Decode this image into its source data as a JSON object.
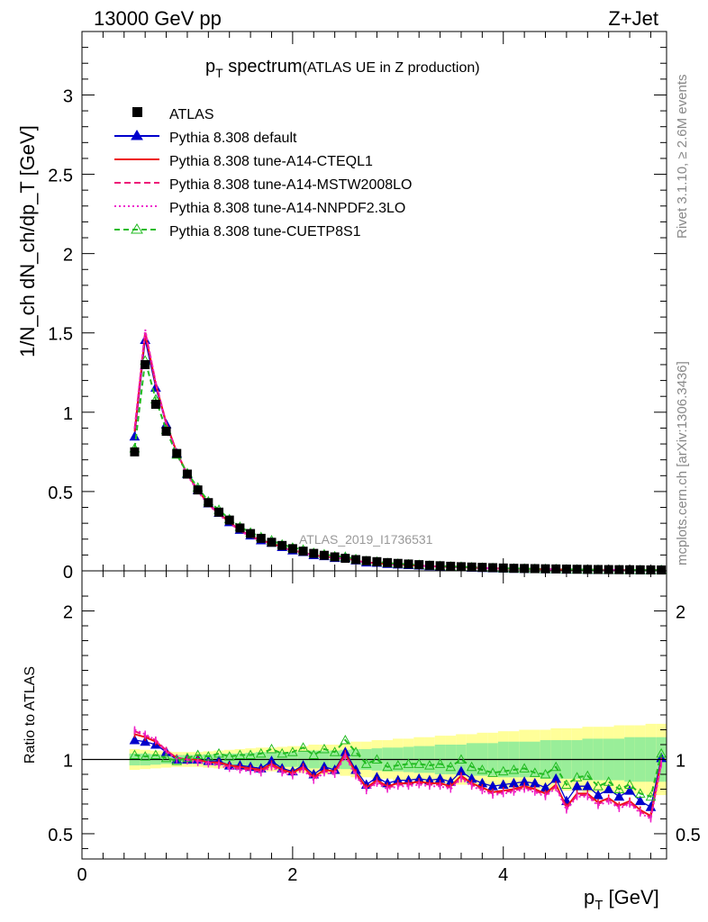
{
  "header": {
    "left_label": "13000 GeV pp",
    "right_label": "Z+Jet"
  },
  "side_labels": {
    "rivet": "Rivet 3.1.10, ≥ 2.6M events",
    "mcplots": "mcplots.cern.ch [arXiv:1306.3436]"
  },
  "chart_data": [
    {
      "type": "line",
      "panel": "main",
      "title_main": "p",
      "title_sub": "T",
      "title_rest": " spectrum",
      "title_note": "(ATLAS UE in Z production)",
      "ylabel": "1/N_ch dN_ch/dp_T [GeV]",
      "watermark": "ATLAS_2019_I1736531",
      "xlim": [
        0,
        5.55
      ],
      "ylim": [
        0,
        3.4
      ],
      "yticks": [
        0,
        0.5,
        1,
        1.5,
        2,
        2.5,
        3
      ],
      "ytick_labels": [
        "0",
        "0.5",
        "1",
        "1.5",
        "2",
        "2.5",
        "3"
      ],
      "x": [
        0.5,
        0.6,
        0.7,
        0.8,
        0.9,
        1.0,
        1.1,
        1.2,
        1.3,
        1.4,
        1.5,
        1.6,
        1.7,
        1.8,
        1.9,
        2.0,
        2.1,
        2.2,
        2.3,
        2.4,
        2.5,
        2.6,
        2.7,
        2.8,
        2.9,
        3.0,
        3.1,
        3.2,
        3.3,
        3.4,
        3.5,
        3.6,
        3.7,
        3.8,
        3.9,
        4.0,
        4.1,
        4.2,
        4.3,
        4.4,
        4.5,
        4.6,
        4.7,
        4.8,
        4.9,
        5.0,
        5.1,
        5.2,
        5.3,
        5.4,
        5.5
      ],
      "data": {
        "name": "ATLAS",
        "values": [
          0.75,
          1.3,
          1.05,
          0.88,
          0.74,
          0.61,
          0.51,
          0.43,
          0.37,
          0.32,
          0.27,
          0.235,
          0.205,
          0.18,
          0.16,
          0.14,
          0.124,
          0.11,
          0.098,
          0.088,
          0.079,
          0.071,
          0.064,
          0.058,
          0.052,
          0.047,
          0.043,
          0.039,
          0.035,
          0.032,
          0.029,
          0.026,
          0.024,
          0.022,
          0.02,
          0.018,
          0.016,
          0.015,
          0.014,
          0.013,
          0.012,
          0.011,
          0.01,
          0.009,
          0.0085,
          0.008,
          0.0075,
          0.007,
          0.0065,
          0.006,
          0.0055
        ]
      },
      "legend": [
        {
          "name": "ATLAS",
          "color": "#000000",
          "style": "square"
        },
        {
          "name": "Pythia 8.308 default",
          "color": "#0000cc",
          "style": "solid-triangle"
        },
        {
          "name": "Pythia 8.308 tune-A14-CTEQL1",
          "color": "#ee1111",
          "style": "solid"
        },
        {
          "name": "Pythia 8.308 tune-A14-MSTW2008LO",
          "color": "#ee1177",
          "style": "dashed"
        },
        {
          "name": "Pythia 8.308 tune-A14-NNPDF2.3LO",
          "color": "#ee22cc",
          "style": "dotted"
        },
        {
          "name": "Pythia 8.308 tune-CUETP8S1",
          "color": "#22bb22",
          "style": "dashed-open-triangle"
        }
      ],
      "legend_placement": "top-left"
    },
    {
      "type": "line",
      "panel": "ratio",
      "ylabel": "Ratio to ATLAS",
      "xlabel_main": "p",
      "xlabel_sub": "T",
      "xlabel_rest": " [GeV]",
      "xlim": [
        0,
        5.55
      ],
      "ylim": [
        0.33,
        2.27
      ],
      "xticks": [
        0,
        2,
        4
      ],
      "xtick_labels": [
        "0",
        "2",
        "4"
      ],
      "yticks": [
        0.5,
        1,
        2
      ],
      "ytick_labels": [
        "0.5",
        "1",
        "2"
      ],
      "x": [
        0.5,
        0.6,
        0.7,
        0.8,
        0.9,
        1.0,
        1.1,
        1.2,
        1.3,
        1.4,
        1.5,
        1.6,
        1.7,
        1.8,
        1.9,
        2.0,
        2.1,
        2.2,
        2.3,
        2.4,
        2.5,
        2.6,
        2.7,
        2.8,
        2.9,
        3.0,
        3.1,
        3.2,
        3.3,
        3.4,
        3.5,
        3.6,
        3.7,
        3.8,
        3.9,
        4.0,
        4.1,
        4.2,
        4.3,
        4.4,
        4.5,
        4.6,
        4.7,
        4.8,
        4.9,
        5.0,
        5.1,
        5.2,
        5.3,
        5.4,
        5.5
      ],
      "band_inner": [
        0.04,
        0.04,
        0.035,
        0.03,
        0.03,
        0.03,
        0.03,
        0.035,
        0.035,
        0.04,
        0.04,
        0.045,
        0.05,
        0.05,
        0.05,
        0.05,
        0.055,
        0.06,
        0.06,
        0.06,
        0.065,
        0.07,
        0.07,
        0.075,
        0.08,
        0.08,
        0.085,
        0.09,
        0.09,
        0.1,
        0.1,
        0.1,
        0.11,
        0.11,
        0.11,
        0.12,
        0.12,
        0.12,
        0.12,
        0.13,
        0.13,
        0.13,
        0.13,
        0.14,
        0.14,
        0.14,
        0.14,
        0.15,
        0.15,
        0.15,
        0.15
      ],
      "band_outer": [
        0.07,
        0.065,
        0.06,
        0.055,
        0.05,
        0.05,
        0.05,
        0.055,
        0.06,
        0.065,
        0.07,
        0.075,
        0.08,
        0.08,
        0.085,
        0.09,
        0.09,
        0.1,
        0.1,
        0.1,
        0.11,
        0.12,
        0.12,
        0.13,
        0.13,
        0.14,
        0.14,
        0.15,
        0.15,
        0.16,
        0.16,
        0.17,
        0.17,
        0.18,
        0.18,
        0.19,
        0.19,
        0.2,
        0.2,
        0.2,
        0.21,
        0.21,
        0.21,
        0.22,
        0.22,
        0.22,
        0.23,
        0.23,
        0.23,
        0.24,
        0.24
      ],
      "series": [
        {
          "name": "Pythia 8.308 default",
          "color": "#0000cc",
          "marker": "triangle-filled",
          "values": [
            1.13,
            1.12,
            1.1,
            1.05,
            1.0,
            1.0,
            1.0,
            0.99,
            0.99,
            0.96,
            0.96,
            0.95,
            0.94,
            0.99,
            0.94,
            0.92,
            0.96,
            0.9,
            0.95,
            0.93,
            1.05,
            0.93,
            0.83,
            0.88,
            0.84,
            0.86,
            0.86,
            0.87,
            0.86,
            0.87,
            0.85,
            0.92,
            0.87,
            0.84,
            0.82,
            0.83,
            0.84,
            0.85,
            0.84,
            0.81,
            0.87,
            0.72,
            0.82,
            0.82,
            0.76,
            0.8,
            0.75,
            0.79,
            0.72,
            0.68,
            1.01
          ]
        },
        {
          "name": "Pythia 8.308 tune-A14-CTEQL1",
          "color": "#ee1111",
          "marker": "none",
          "values": [
            1.17,
            1.15,
            1.12,
            1.06,
            1.01,
            1.0,
            1.0,
            0.98,
            0.98,
            0.96,
            0.95,
            0.94,
            0.93,
            0.97,
            0.93,
            0.91,
            0.95,
            0.88,
            0.93,
            0.92,
            1.04,
            0.91,
            0.81,
            0.86,
            0.82,
            0.84,
            0.84,
            0.85,
            0.84,
            0.84,
            0.82,
            0.89,
            0.84,
            0.81,
            0.78,
            0.79,
            0.8,
            0.82,
            0.8,
            0.77,
            0.83,
            0.68,
            0.77,
            0.77,
            0.71,
            0.74,
            0.69,
            0.72,
            0.66,
            0.62,
            0.99
          ]
        },
        {
          "name": "Pythia 8.308 tune-A14-MSTW2008LO",
          "color": "#ee1177",
          "marker": "none",
          "values": [
            1.19,
            1.16,
            1.13,
            1.06,
            1.01,
            1.0,
            0.99,
            0.98,
            0.97,
            0.95,
            0.94,
            0.93,
            0.92,
            0.96,
            0.92,
            0.9,
            0.94,
            0.87,
            0.92,
            0.91,
            1.03,
            0.9,
            0.8,
            0.85,
            0.81,
            0.83,
            0.83,
            0.84,
            0.83,
            0.83,
            0.81,
            0.88,
            0.83,
            0.8,
            0.77,
            0.78,
            0.79,
            0.81,
            0.79,
            0.76,
            0.82,
            0.67,
            0.76,
            0.76,
            0.7,
            0.73,
            0.68,
            0.71,
            0.65,
            0.61,
            0.98
          ]
        },
        {
          "name": "Pythia 8.308 tune-A14-NNPDF2.3LO",
          "color": "#ee22cc",
          "marker": "none",
          "values": [
            1.2,
            1.17,
            1.13,
            1.05,
            1.0,
            0.99,
            0.98,
            0.97,
            0.96,
            0.94,
            0.93,
            0.92,
            0.91,
            0.95,
            0.91,
            0.89,
            0.93,
            0.86,
            0.91,
            0.9,
            1.02,
            0.89,
            0.79,
            0.84,
            0.8,
            0.82,
            0.82,
            0.83,
            0.82,
            0.82,
            0.8,
            0.87,
            0.82,
            0.79,
            0.76,
            0.77,
            0.78,
            0.8,
            0.78,
            0.75,
            0.81,
            0.66,
            0.75,
            0.75,
            0.69,
            0.72,
            0.67,
            0.7,
            0.64,
            0.6,
            0.97
          ]
        },
        {
          "name": "Pythia 8.308 tune-CUETP8S1",
          "color": "#22bb22",
          "marker": "triangle-open",
          "values": [
            1.03,
            1.02,
            1.03,
            1.01,
            0.99,
            1.01,
            1.03,
            1.02,
            1.04,
            1.02,
            1.03,
            1.03,
            1.04,
            1.07,
            1.04,
            1.05,
            1.08,
            1.03,
            1.07,
            1.05,
            1.13,
            1.05,
            0.97,
            1.0,
            0.95,
            0.96,
            0.97,
            0.97,
            0.96,
            0.97,
            0.95,
            1.0,
            0.95,
            0.93,
            0.91,
            0.92,
            0.93,
            0.94,
            0.91,
            0.9,
            0.95,
            0.83,
            0.88,
            0.89,
            0.82,
            0.85,
            0.8,
            0.83,
            0.77,
            0.75,
            1.04
          ]
        }
      ]
    }
  ]
}
